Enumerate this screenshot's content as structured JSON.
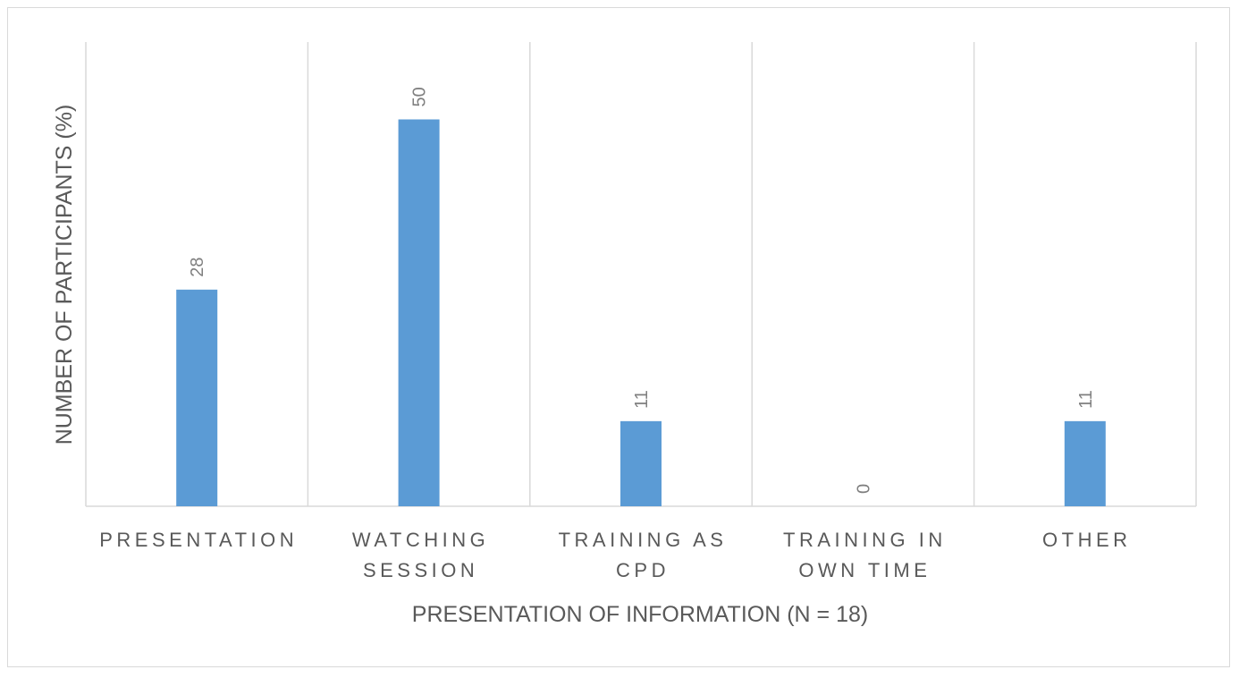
{
  "chart_data": {
    "type": "bar",
    "categories": [
      [
        "PRESENTATION"
      ],
      [
        "WATCHING",
        "SESSION"
      ],
      [
        "TRAINING AS",
        "CPD"
      ],
      [
        "TRAINING IN",
        "OWN TIME"
      ],
      [
        "OTHER"
      ]
    ],
    "values": [
      28,
      50,
      11,
      0,
      11
    ],
    "data_labels": [
      "28",
      "50",
      "11",
      "0",
      "11"
    ],
    "title": "",
    "xlabel": "PRESENTATION OF INFORMATION (N = 18)",
    "ylabel": "NUMBER OF PARTICIPANTS (%)",
    "ylim": [
      0,
      60
    ],
    "grid": "vertical separators",
    "bar_color": "#5b9bd5",
    "gridline_color": "#d9d9d9",
    "text_color": "#595959"
  }
}
